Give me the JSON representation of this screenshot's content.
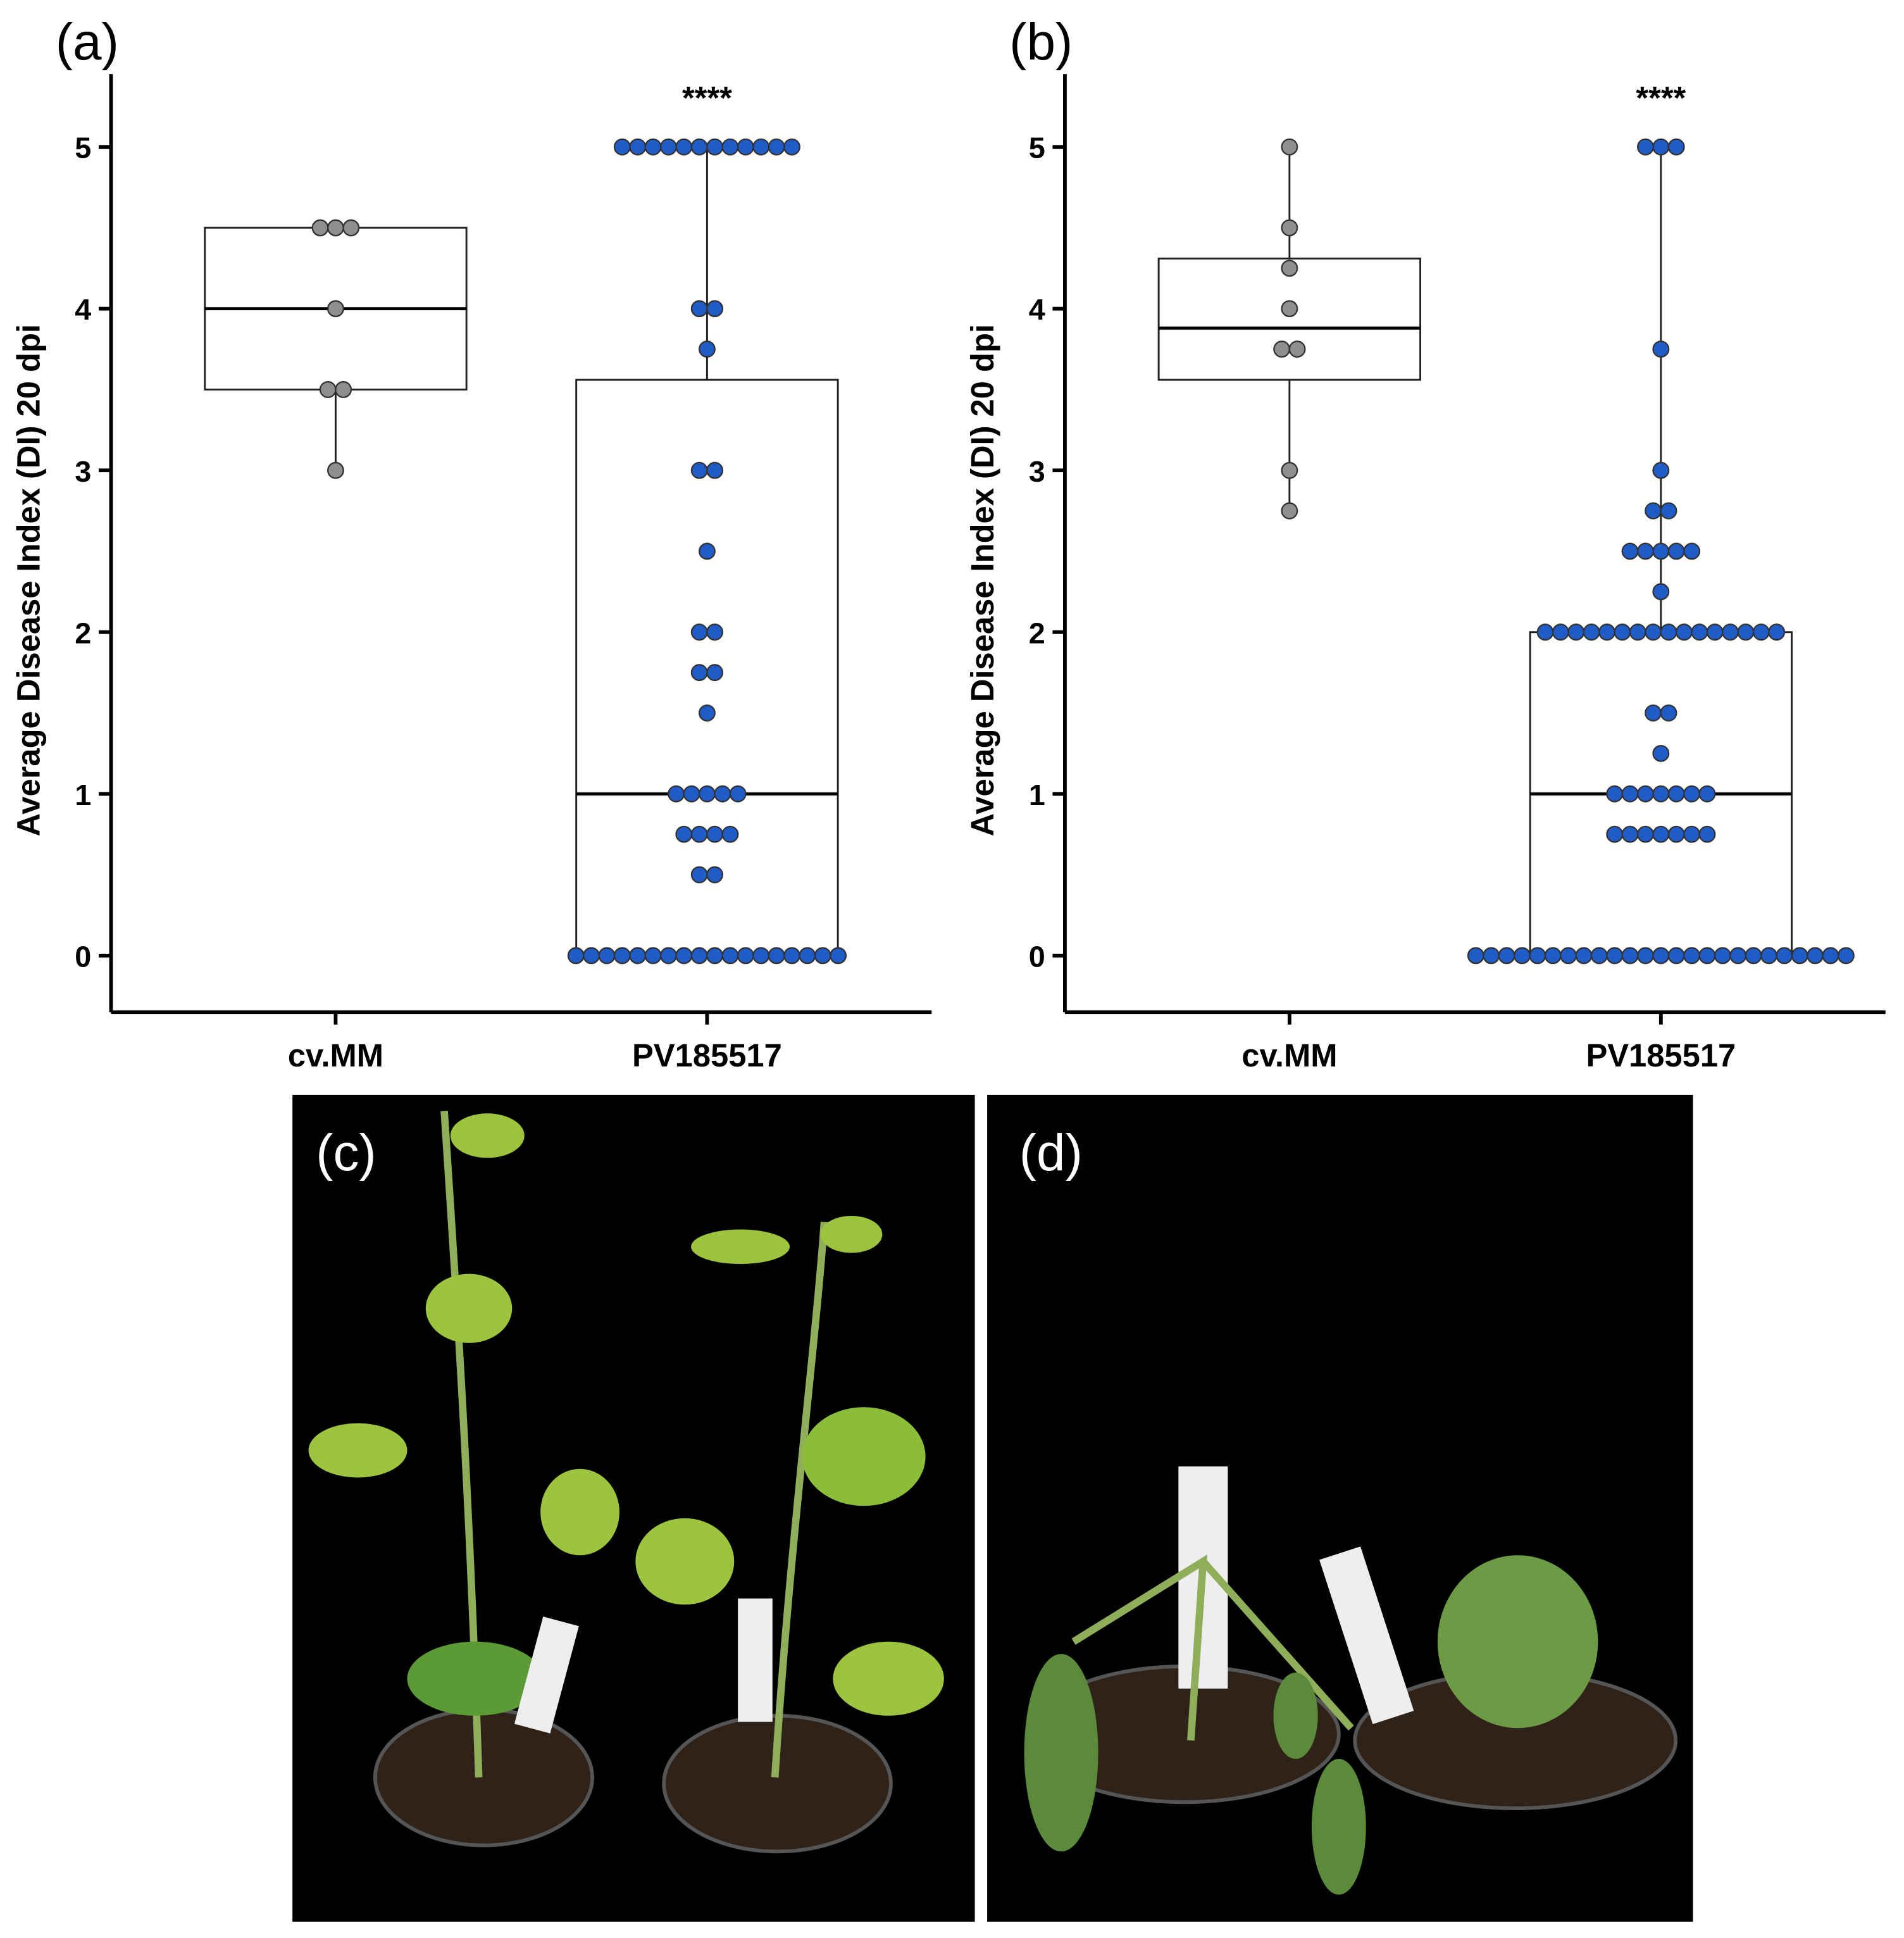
{
  "chart_data": [
    {
      "type": "box",
      "panel_label": "(a)",
      "ylabel": "Average Disease Index (DI) 20 dpi",
      "annotation": "****",
      "ylim": [
        -0.35,
        5.45
      ],
      "yticks": [
        0,
        1,
        2,
        3,
        4,
        5
      ],
      "groups": [
        {
          "name": "cv.MM",
          "color": "#8f8f8f",
          "q1": 3.5,
          "median": 4,
          "q3": 4.5,
          "whisker_low": 3,
          "whisker_high": 4.5,
          "points": [
            4.5,
            4.5,
            4.5,
            4,
            3.5,
            3.5,
            3
          ]
        },
        {
          "name": "PV185517",
          "color": "#1f5cc8",
          "q1": 0,
          "median": 1,
          "q3": 3.56,
          "whisker_low": 0,
          "whisker_high": 5,
          "points": [
            5,
            5,
            5,
            5,
            5,
            5,
            5,
            5,
            5,
            5,
            5,
            5,
            4,
            4,
            3.75,
            3,
            3,
            2.5,
            2,
            2,
            1.75,
            1.75,
            1.5,
            1,
            1,
            1,
            1,
            1,
            0.75,
            0.75,
            0.75,
            0.75,
            0.5,
            0.5,
            0,
            0,
            0,
            0,
            0,
            0,
            0,
            0,
            0,
            0,
            0,
            0,
            0,
            0,
            0,
            0,
            0,
            0
          ]
        }
      ]
    },
    {
      "type": "box",
      "panel_label": "(b)",
      "ylabel": "Average Disease Index (DI) 20 dpi",
      "annotation": "****",
      "ylim": [
        -0.35,
        5.45
      ],
      "yticks": [
        0,
        1,
        2,
        3,
        4,
        5
      ],
      "groups": [
        {
          "name": "cv.MM",
          "color": "#8f8f8f",
          "q1": 3.56,
          "median": 3.88,
          "q3": 4.31,
          "whisker_low": 2.75,
          "whisker_high": 5,
          "points": [
            5,
            4.5,
            4.25,
            4,
            3.75,
            3.75,
            3,
            2.75
          ]
        },
        {
          "name": "PV185517",
          "color": "#1f5cc8",
          "q1": 0,
          "median": 1,
          "q3": 2,
          "whisker_low": 0,
          "whisker_high": 5,
          "points": [
            5,
            5,
            5,
            3.75,
            3,
            2.75,
            2.75,
            2.5,
            2.5,
            2.5,
            2.5,
            2.5,
            2.25,
            2,
            2,
            2,
            2,
            2,
            2,
            2,
            2,
            2,
            2,
            2,
            2,
            2,
            2,
            2,
            2,
            1.5,
            1.5,
            1.25,
            1,
            1,
            1,
            1,
            1,
            1,
            1,
            0.75,
            0.75,
            0.75,
            0.75,
            0.75,
            0.75,
            0.75,
            0,
            0,
            0,
            0,
            0,
            0,
            0,
            0,
            0,
            0,
            0,
            0,
            0,
            0,
            0,
            0,
            0,
            0,
            0,
            0,
            0,
            0,
            0,
            0,
            0
          ]
        }
      ]
    }
  ],
  "photos": [
    {
      "label": "(c)"
    },
    {
      "label": "(d)"
    }
  ]
}
